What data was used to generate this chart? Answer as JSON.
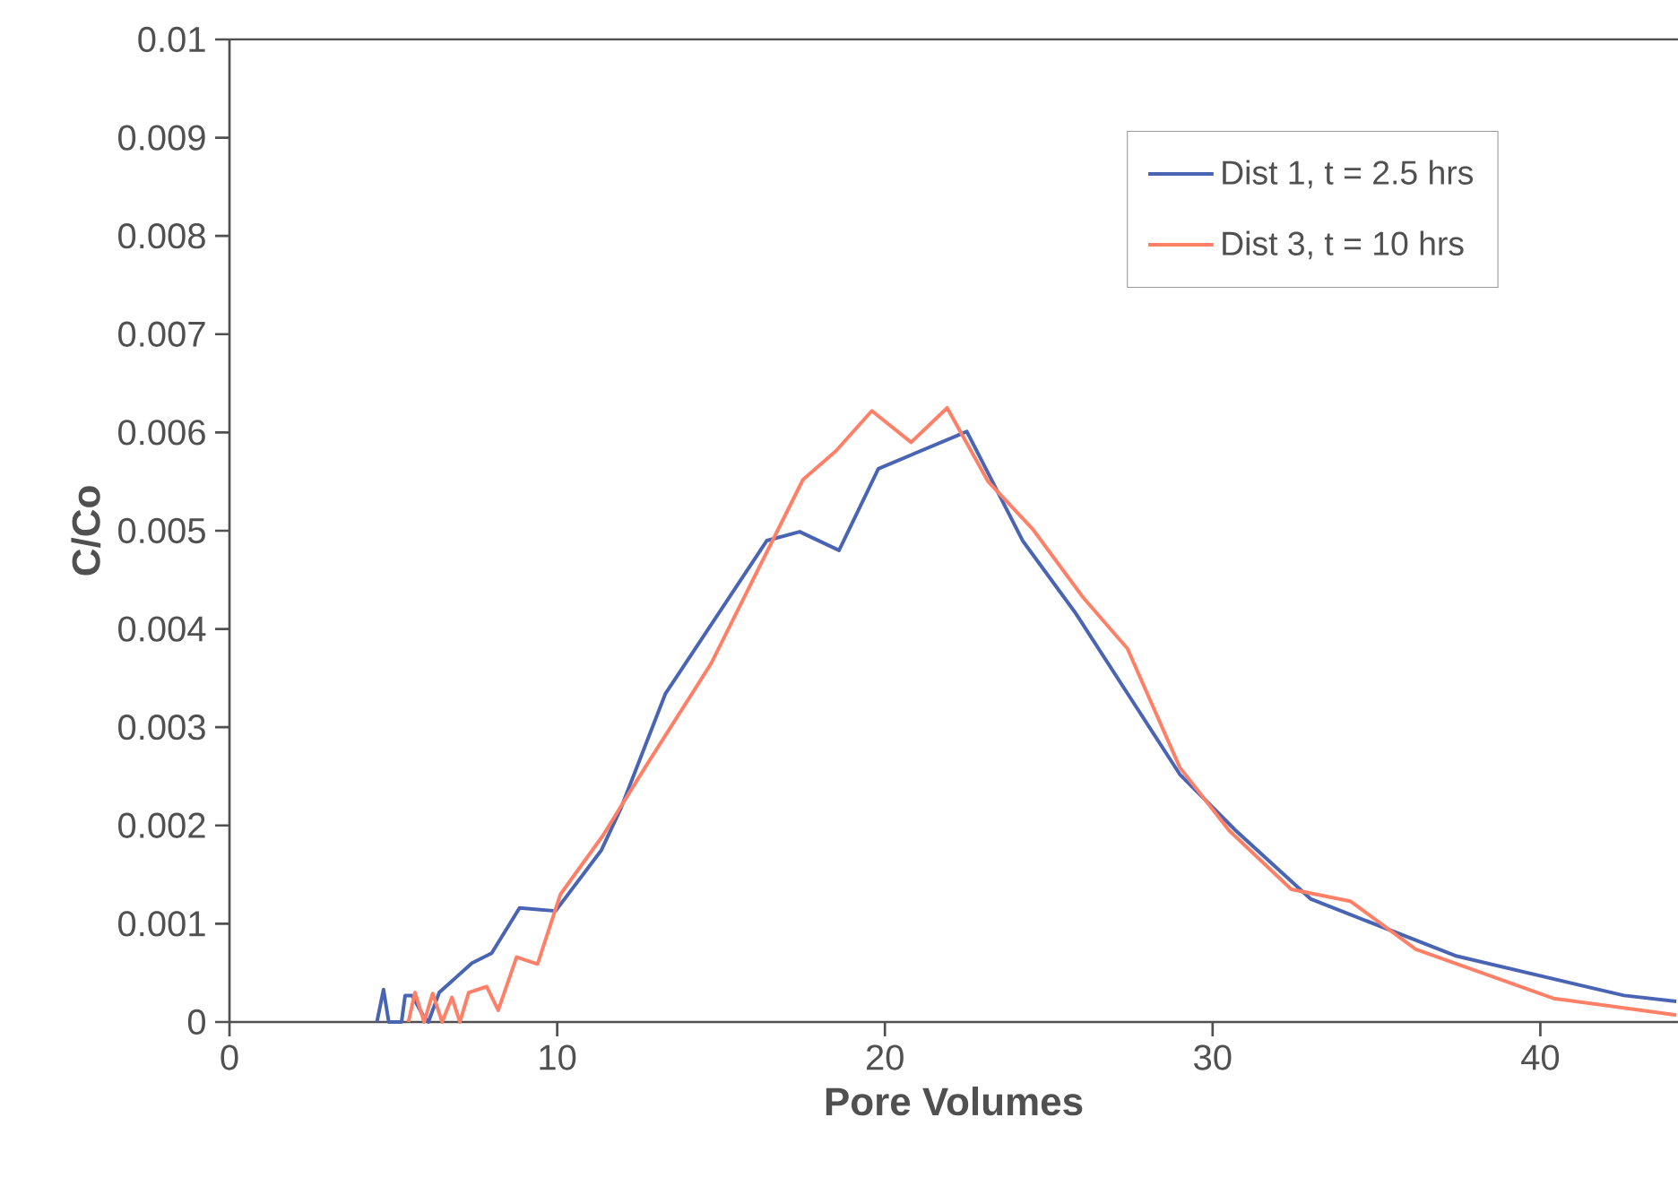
{
  "chart_data": {
    "type": "line",
    "xlabel": "Pore Volumes",
    "ylabel": "C/Co",
    "xlim": [
      0,
      44.2
    ],
    "ylim": [
      0,
      0.01
    ],
    "xticks": [
      0,
      10,
      20,
      30,
      40
    ],
    "yticks": [
      0,
      0.001,
      0.002,
      0.003,
      0.004,
      0.005,
      0.006,
      0.007,
      0.008,
      0.009,
      0.01
    ],
    "legend": "top right",
    "marker": "none",
    "line_style": "solid",
    "series": [
      {
        "name": "Dist 1, t = 2.5 hrs",
        "color": "#4a64b4",
        "x": [
          4.5,
          4.7,
          4.86,
          5.25,
          5.36,
          5.57,
          5.9,
          6.07,
          6.4,
          6.8,
          7.4,
          8.0,
          8.85,
          9.95,
          11.35,
          11.95,
          13.3,
          16.4,
          17.4,
          18.6,
          19.8,
          22.5,
          24.2,
          25.8,
          29.0,
          30.7,
          33.0,
          37.45,
          42.55,
          44.15
        ],
        "values": [
          0,
          0.00033,
          0,
          0,
          0.00027,
          0.00027,
          7e-05,
          0,
          0.0003,
          0.00042,
          0.0006,
          0.0007,
          0.00116,
          0.00113,
          0.00175,
          0.00218,
          0.00334,
          0.0049,
          0.00499,
          0.0048,
          0.00563,
          0.00601,
          0.0049,
          0.00417,
          0.00252,
          0.00195,
          0.00125,
          0.00067,
          0.00027,
          0.00021
        ]
      },
      {
        "name": "Dist 3, t = 10 hrs",
        "color": "#ff8066",
        "x": [
          5.46,
          5.66,
          5.94,
          6.2,
          6.49,
          6.79,
          7.03,
          7.3,
          7.85,
          8.2,
          8.76,
          9.4,
          10.1,
          11.4,
          12.68,
          14.7,
          17.5,
          18.5,
          19.6,
          20.8,
          21.9,
          23.15,
          24.5,
          26.05,
          27.4,
          29.0,
          30.5,
          32.4,
          34.2,
          36.2,
          40.4,
          44.15
        ],
        "values": [
          0,
          0.0003,
          0,
          0.00029,
          0,
          0.00025,
          0,
          0.0003,
          0.00036,
          0.00012,
          0.00066,
          0.00059,
          0.0013,
          0.0019,
          0.00259,
          0.00365,
          0.00552,
          0.00581,
          0.00622,
          0.0059,
          0.00625,
          0.0055,
          0.00502,
          0.00432,
          0.0038,
          0.00259,
          0.00195,
          0.00135,
          0.00123,
          0.00074,
          0.00024,
          7e-05
        ]
      }
    ]
  }
}
